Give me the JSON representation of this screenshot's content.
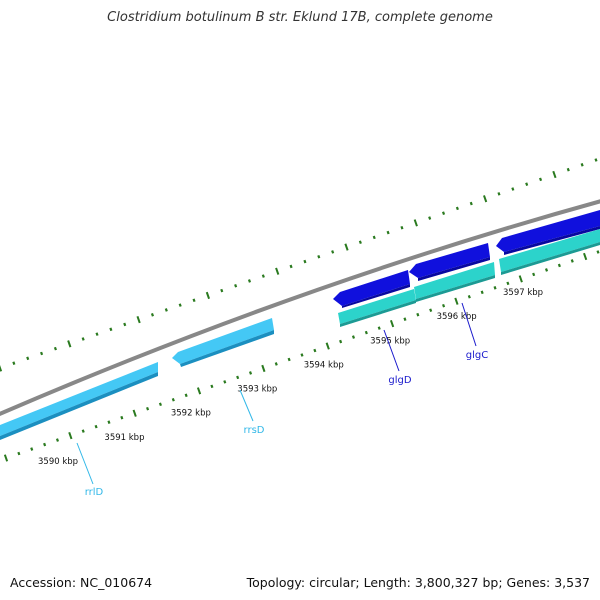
{
  "title": "Clostridium botulinum B str. Eklund 17B, complete genome",
  "footer": {
    "accession": "Accession: NC_010674",
    "summary": "Topology: circular; Length: 3,800,327 bp; Genes: 3,537"
  },
  "colors": {
    "backbone": "#888888",
    "tick": "#2a7a1f",
    "rrna": "#44c8f5",
    "rrna_dark": "#1b8fc0",
    "cds": "#1010dd",
    "cds_dark": "#0808a0",
    "cds2": "#2cd3cb",
    "cds2_dark": "#1c9a94",
    "rrna_label": "#32b8e8",
    "gene_label": "#1a1acc"
  },
  "scale": {
    "labels": [
      {
        "text": "3590 kbp",
        "kbp": 3590
      },
      {
        "text": "3591 kbp",
        "kbp": 3591
      },
      {
        "text": "3592 kbp",
        "kbp": 3592
      },
      {
        "text": "3593 kbp",
        "kbp": 3593
      },
      {
        "text": "3594 kbp",
        "kbp": 3594
      },
      {
        "text": "3595 kbp",
        "kbp": 3595
      },
      {
        "text": "3596 kbp",
        "kbp": 3596
      },
      {
        "text": "3597 kbp",
        "kbp": 3597
      }
    ]
  },
  "features": [
    {
      "name": "rrlD",
      "type": "rRNA",
      "label": "rrlD"
    },
    {
      "name": "rrsD",
      "type": "rRNA",
      "label": "rrsD"
    },
    {
      "name": "glgD",
      "type": "CDS",
      "label": "glgD"
    },
    {
      "name": "glgC",
      "type": "CDS",
      "label": "glgC"
    }
  ]
}
